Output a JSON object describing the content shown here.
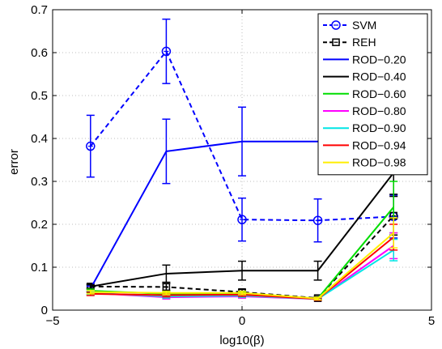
{
  "chart_data": {
    "type": "line",
    "xlabel": "log10(β)",
    "ylabel": "error",
    "xlim": [
      -5,
      5
    ],
    "ylim": [
      0,
      0.7
    ],
    "x_ticks": [
      -5,
      0,
      5
    ],
    "y_ticks": [
      0,
      0.1,
      0.2,
      0.3,
      0.4,
      0.5,
      0.6,
      0.7
    ],
    "x_tick_labels": [
      "−5",
      "0",
      "5"
    ],
    "y_tick_labels": [
      "0",
      "0.1",
      "0.2",
      "0.3",
      "0.4",
      "0.5",
      "0.6",
      "0.7"
    ],
    "grid": true,
    "legend_position": "top-right",
    "x": [
      -4,
      -2,
      0,
      2,
      4
    ],
    "series": [
      {
        "name": "SVM",
        "color": "#0000ff",
        "dash": true,
        "marker": "circle",
        "values": [
          0.382,
          0.603,
          0.211,
          0.209,
          0.218
        ],
        "errors": [
          0.072,
          0.075,
          0.05,
          0.05,
          0.05
        ]
      },
      {
        "name": "REH",
        "color": "#000000",
        "dash": true,
        "marker": "square",
        "values": [
          0.055,
          0.054,
          0.042,
          0.028,
          0.22
        ],
        "errors": [
          0.006,
          0.008,
          0.006,
          0.004,
          0.045
        ]
      },
      {
        "name": "ROD−0.20",
        "color": "#0000ff",
        "dash": false,
        "marker": "none",
        "values": [
          0.05,
          0.37,
          0.393,
          0.393,
          0.393
        ],
        "errors": [
          0.006,
          0.075,
          0.08,
          0.0,
          0.0
        ]
      },
      {
        "name": "ROD−0.40",
        "color": "#000000",
        "dash": false,
        "marker": "none",
        "values": [
          0.055,
          0.085,
          0.092,
          0.092,
          0.32
        ],
        "errors": [
          0.004,
          0.02,
          0.022,
          0.022,
          0.05
        ]
      },
      {
        "name": "ROD−0.60",
        "color": "#00dd00",
        "dash": false,
        "marker": "none",
        "values": [
          0.045,
          0.038,
          0.038,
          0.027,
          0.24
        ],
        "errors": [
          0.004,
          0.004,
          0.004,
          0.003,
          0.06
        ]
      },
      {
        "name": "ROD−0.80",
        "color": "#ff00ff",
        "dash": false,
        "marker": "none",
        "values": [
          0.04,
          0.03,
          0.032,
          0.026,
          0.15
        ],
        "errors": [
          0.004,
          0.004,
          0.004,
          0.003,
          0.03
        ]
      },
      {
        "name": "ROD−0.90",
        "color": "#00e5e5",
        "dash": false,
        "marker": "none",
        "values": [
          0.04,
          0.032,
          0.034,
          0.026,
          0.14
        ],
        "errors": [
          0.004,
          0.004,
          0.004,
          0.003,
          0.025
        ]
      },
      {
        "name": "ROD−0.94",
        "color": "#ff0000",
        "dash": false,
        "marker": "none",
        "values": [
          0.038,
          0.035,
          0.036,
          0.026,
          0.17
        ],
        "errors": [
          0.004,
          0.004,
          0.004,
          0.003,
          0.03
        ]
      },
      {
        "name": "ROD−0.98",
        "color": "#ffee00",
        "dash": false,
        "marker": "none",
        "values": [
          0.042,
          0.04,
          0.04,
          0.027,
          0.18
        ],
        "errors": [
          0.004,
          0.004,
          0.004,
          0.003,
          0.035
        ]
      }
    ]
  }
}
